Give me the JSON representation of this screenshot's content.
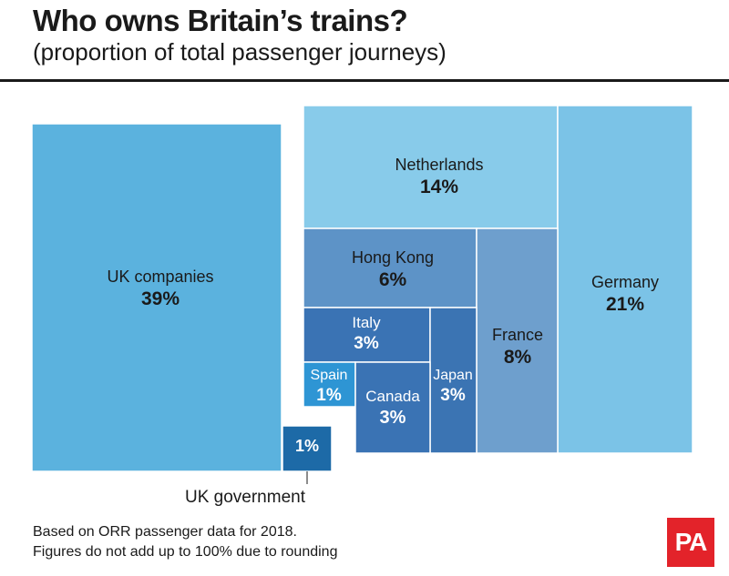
{
  "header": {
    "title": "Who owns Britain’s trains?",
    "subtitle": "(proportion of total passenger journeys)"
  },
  "chart_data": {
    "type": "treemap",
    "title": "Who owns Britain’s trains?",
    "subtitle": "(proportion of total passenger journeys)",
    "unit": "%",
    "items": [
      {
        "name": "UK companies",
        "label": "UK companies",
        "value": 39,
        "value_label": "39%",
        "color": "#5bb2de"
      },
      {
        "name": "Netherlands",
        "label": "Netherlands",
        "value": 14,
        "value_label": "14%",
        "color": "#88cbea"
      },
      {
        "name": "Germany",
        "label": "Germany",
        "value": 21,
        "value_label": "21%",
        "color": "#7bc3e7"
      },
      {
        "name": "Hong Kong",
        "label": "Hong Kong",
        "value": 6,
        "value_label": "6%",
        "color": "#5d93c7"
      },
      {
        "name": "France",
        "label": "France",
        "value": 8,
        "value_label": "8%",
        "color": "#6e9fcd"
      },
      {
        "name": "Italy",
        "label": "Italy",
        "value": 3,
        "value_label": "3%",
        "color": "#3a73b4"
      },
      {
        "name": "Japan",
        "label": "Japan",
        "value": 3,
        "value_label": "3%",
        "color": "#3b74b3"
      },
      {
        "name": "Spain",
        "label": "Spain",
        "value": 1,
        "value_label": "1%",
        "color": "#2e95d4"
      },
      {
        "name": "Canada",
        "label": "Canada",
        "value": 3,
        "value_label": "3%",
        "color": "#3a73b4"
      },
      {
        "name": "UK government",
        "label": "UK government",
        "value": 1,
        "value_label": "1%",
        "color": "#1d6aa7"
      }
    ]
  },
  "footnotes": [
    "Based on ORR passenger data for 2018.",
    "Figures do not add up to 100% due to rounding"
  ],
  "logo": {
    "text": "PA",
    "color": "#e3232a"
  }
}
